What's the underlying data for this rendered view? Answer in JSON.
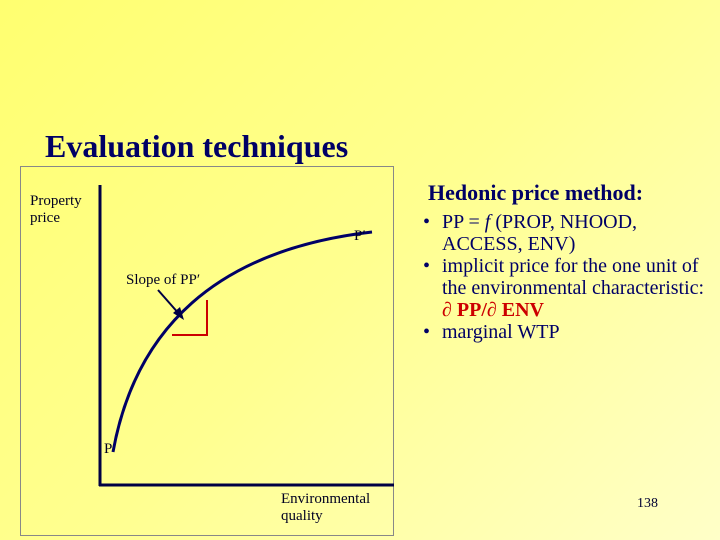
{
  "title": "Evaluation techniques",
  "diagram": {
    "y_axis_label": "Property price",
    "x_axis_label": "Environmental quality",
    "curve_start": "P",
    "curve_end": "P′",
    "slope_label": "Slope of PP′"
  },
  "panel": {
    "heading": "Hedonic price method:",
    "bullets": [
      {
        "parts": [
          "PP = ",
          "f",
          " (PROP, NHOOD, ACCESS, ENV)"
        ]
      },
      {
        "parts": [
          "implicit price for the one unit of the environmental characteristic: ",
          "∂ PP/∂ ENV"
        ]
      },
      {
        "parts": [
          "marginal WTP"
        ]
      }
    ]
  },
  "page_number": "138"
}
